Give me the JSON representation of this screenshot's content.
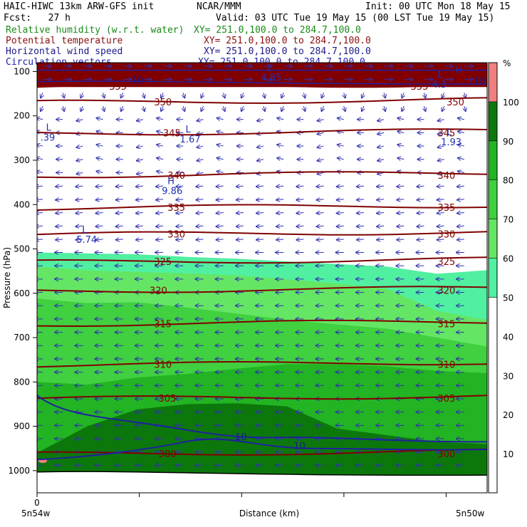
{
  "header": {
    "model": "HAIC-HIWC 13km ARW-GFS init",
    "org": "NCAR/MMM",
    "init": "Init: 00 UTC Mon 18 May 15",
    "fcst": "Fcst:   27 h",
    "valid": "Valid: 03 UTC Tue 19 May 15 (00 LST Tue 19 May 15)"
  },
  "legend": [
    {
      "label": "Relative humidity (w.r.t. water)",
      "xy": "XY= 251.0,100.0 to 284.7,100.0",
      "color": "#1a8a1a"
    },
    {
      "label": "Potential temperature",
      "xy": "XY= 251.0,100.0 to 284.7,100.0",
      "color": "#8b1010"
    },
    {
      "label": "Horizontal wind speed",
      "xy": "XY= 251.0,100.0 to 284.7,100.0",
      "color": "#1a1a8a"
    },
    {
      "label": "Circulation vectors",
      "xy": "XY= 251.0,100.0 to 284.7,100.0",
      "color": "#2020aa"
    }
  ],
  "chart_data": {
    "type": "heatmap",
    "ylabel": "Pressure (hPa)",
    "xlabel": "Distance (km)",
    "x_tick_labels": [
      "0"
    ],
    "x_end_labels": [
      "5n54w",
      "5n50w"
    ],
    "y_ticks": [
      100,
      200,
      300,
      400,
      500,
      600,
      700,
      800,
      900,
      1000
    ],
    "colorbar": {
      "unit": "%",
      "ticks": [
        10,
        20,
        30,
        40,
        50,
        60,
        70,
        80,
        90,
        100
      ],
      "bands": [
        {
          "from": 0,
          "to": 50,
          "color": "#ffffff"
        },
        {
          "from": 50,
          "to": 60,
          "color": "#50f0a0"
        },
        {
          "from": 60,
          "to": 70,
          "color": "#64e664"
        },
        {
          "from": 70,
          "to": 80,
          "color": "#40d040"
        },
        {
          "from": 80,
          "to": 90,
          "color": "#22b422"
        },
        {
          "from": 90,
          "to": 100,
          "color": "#0c780c"
        },
        {
          "from": 100,
          "to": 110,
          "color": "#f08080"
        }
      ]
    },
    "rh_regions": [
      {
        "band_color": "#50f0a0",
        "top_p": [
          508,
          510,
          512,
          518,
          522,
          528,
          534,
          540,
          556,
          548
        ]
      },
      {
        "band_color": "#64e664",
        "top_p": [
          540,
          548,
          552,
          555,
          560,
          568,
          578,
          590,
          640,
          660
        ]
      },
      {
        "band_color": "#40d040",
        "top_p": [
          612,
          622,
          620,
          632,
          646,
          660,
          670,
          680,
          700,
          720
        ]
      },
      {
        "band_color": "#22b422",
        "top_p": [
          800,
          806,
          790,
          782,
          770,
          760,
          760,
          765,
          775,
          780
        ]
      },
      {
        "band_color": "#0c780c",
        "top_p": [
          960,
          900,
          862,
          850,
          848,
          855,
          905,
          920,
          935,
          940
        ]
      }
    ],
    "upper_moist_layer": {
      "color": "#800000",
      "top_p": 60,
      "bottom_p": 135
    },
    "theta_isolines": [
      {
        "value": 300,
        "p": 963
      },
      {
        "value": 305,
        "p": 838
      },
      {
        "value": 310,
        "p": 762
      },
      {
        "value": 315,
        "p": 670
      },
      {
        "value": 320,
        "p": 595
      },
      {
        "value": 325,
        "p": 530
      },
      {
        "value": 330,
        "p": 468
      },
      {
        "value": 335,
        "p": 408
      },
      {
        "value": 340,
        "p": 335
      },
      {
        "value": 345,
        "p": 240
      },
      {
        "value": 350,
        "p": 170
      },
      {
        "value": 355,
        "p": 135
      }
    ],
    "wind_labels": [
      {
        "text": "10",
        "x_frac": 0.44,
        "p": 925
      },
      {
        "text": "10",
        "x_frac": 0.57,
        "p": 945
      },
      {
        "text": "10",
        "x_frac": 0.21,
        "p": 120
      },
      {
        "text": "10",
        "x_frac": 0.97,
        "p": 122
      }
    ],
    "extrema": [
      {
        "type": "L",
        "value": ".39",
        "x_frac": 0.02,
        "p": 240
      },
      {
        "type": "L",
        "value": "1.67",
        "x_frac": 0.33,
        "p": 244
      },
      {
        "type": "L",
        "value": "1.93",
        "x_frac": 0.91,
        "p": 250
      },
      {
        "type": "H",
        "value": "9.86",
        "x_frac": 0.29,
        "p": 360
      },
      {
        "type": "L",
        "value": "5.74",
        "x_frac": 0.1,
        "p": 470
      },
      {
        "type": "L",
        "value": "4.85",
        "x_frac": 0.51,
        "p": 105
      },
      {
        "type": "L",
        "value": "4.3",
        "x_frac": 0.89,
        "p": 120
      },
      {
        "type": "H",
        "value": "",
        "x_frac": 0.93,
        "p": 110
      }
    ],
    "p_range": [
      80,
      1050
    ],
    "grid": true
  }
}
